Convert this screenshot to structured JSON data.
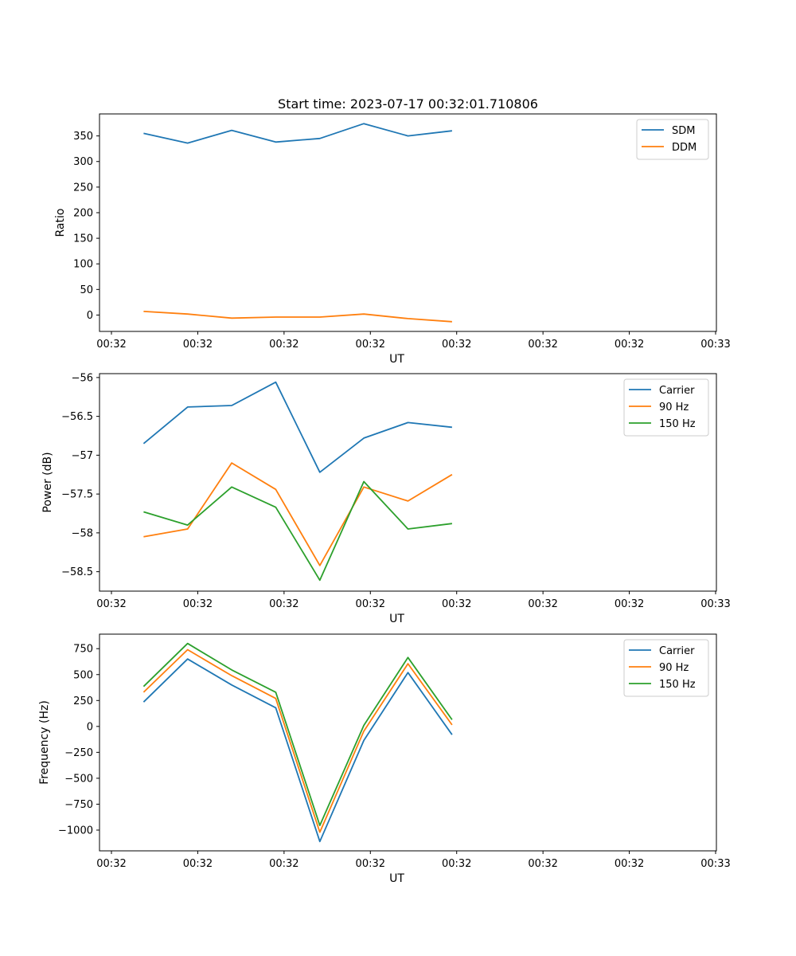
{
  "chart_data": [
    {
      "type": "line",
      "title": "Start time: 2023-07-17 00:32:01.710806",
      "xlabel": "UT",
      "ylabel": "Ratio",
      "xtick_labels": [
        "00:32",
        "00:32",
        "00:32",
        "00:32",
        "00:32",
        "00:32",
        "00:32"
      ],
      "xlim": [
        0,
        14
      ],
      "ylim": [
        -32,
        393
      ],
      "yticks": [
        0,
        50,
        100,
        150,
        200,
        250,
        300,
        350
      ],
      "legend": "top-right",
      "series": [
        {
          "name": "SDM",
          "color": "#1f77b4",
          "x": [
            1,
            2,
            3,
            4,
            5,
            6,
            7,
            8
          ],
          "values": [
            355,
            336,
            361,
            338,
            345,
            374,
            350,
            360
          ]
        },
        {
          "name": "DDM",
          "color": "#ff7f0e",
          "x": [
            1,
            2,
            3,
            4,
            5,
            6,
            7,
            8
          ],
          "values": [
            7,
            2,
            -6,
            -4,
            -4,
            2,
            -7,
            -13
          ]
        }
      ]
    },
    {
      "type": "line",
      "title": "",
      "xlabel": "UT",
      "ylabel": "Power (dB)",
      "xtick_labels": [
        "00:32",
        "00:32",
        "00:32",
        "00:32",
        "00:32",
        "00:32",
        "00:32"
      ],
      "xlim": [
        0,
        14
      ],
      "ylim": [
        -58.75,
        -55.95
      ],
      "yticks": [
        -58.5,
        -58.0,
        -57.5,
        -57.0,
        -56.5,
        -56.0
      ],
      "legend": "top-right",
      "series": [
        {
          "name": "Carrier",
          "color": "#1f77b4",
          "x": [
            1,
            2,
            3,
            4,
            5,
            6,
            7,
            8
          ],
          "values": [
            -56.85,
            -56.38,
            -56.36,
            -56.06,
            -57.22,
            -56.78,
            -56.58,
            -56.64
          ]
        },
        {
          "name": "90 Hz",
          "color": "#ff7f0e",
          "x": [
            1,
            2,
            3,
            4,
            5,
            6,
            7,
            8
          ],
          "values": [
            -58.05,
            -57.95,
            -57.1,
            -57.44,
            -58.42,
            -57.41,
            -57.59,
            -57.25
          ]
        },
        {
          "name": "150 Hz",
          "color": "#2ca02c",
          "x": [
            1,
            2,
            3,
            4,
            5,
            6,
            7,
            8
          ],
          "values": [
            -57.73,
            -57.9,
            -57.41,
            -57.67,
            -58.61,
            -57.34,
            -57.95,
            -57.88
          ]
        }
      ]
    },
    {
      "type": "line",
      "title": "",
      "xlabel": "UT",
      "ylabel": "Frequency (Hz)",
      "xtick_labels": [
        "00:32",
        "00:32",
        "00:32",
        "00:32",
        "00:32",
        "00:32",
        "00:32"
      ],
      "xlim": [
        0,
        14
      ],
      "ylim": [
        -1200,
        890
      ],
      "yticks": [
        -1000,
        -750,
        -500,
        -250,
        0,
        250,
        500,
        750
      ],
      "legend": "top-right",
      "series": [
        {
          "name": "Carrier",
          "color": "#1f77b4",
          "x": [
            1,
            2,
            3,
            4,
            5,
            6,
            7,
            8
          ],
          "values": [
            235,
            650,
            400,
            180,
            -1110,
            -135,
            520,
            -80
          ]
        },
        {
          "name": "90 Hz",
          "color": "#ff7f0e",
          "x": [
            1,
            2,
            3,
            4,
            5,
            6,
            7,
            8
          ],
          "values": [
            330,
            740,
            490,
            270,
            -1020,
            -45,
            605,
            15
          ]
        },
        {
          "name": "150 Hz",
          "color": "#2ca02c",
          "x": [
            1,
            2,
            3,
            4,
            5,
            6,
            7,
            8
          ],
          "values": [
            385,
            800,
            545,
            330,
            -955,
            10,
            665,
            65
          ]
        }
      ]
    }
  ],
  "last_xtick_label": "00:33"
}
